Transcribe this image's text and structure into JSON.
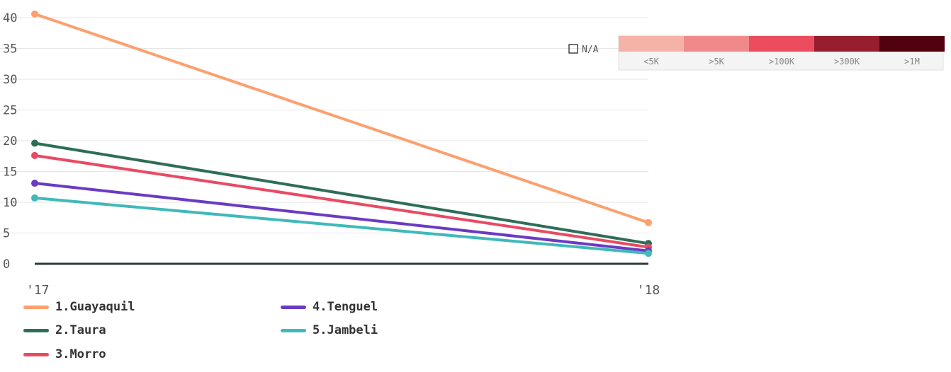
{
  "chart_data": {
    "type": "line",
    "x": [
      "'17",
      "'18"
    ],
    "yticks": [
      0,
      5,
      10,
      15,
      20,
      25,
      30,
      35,
      40
    ],
    "ylim": [
      0,
      41
    ],
    "grid": true,
    "series": [
      {
        "name": "1.Guayaquil",
        "color": "#FCA06E",
        "values": [
          40.6,
          6.7
        ]
      },
      {
        "name": "2.Taura",
        "color": "#2E6E58",
        "values": [
          19.6,
          3.3
        ]
      },
      {
        "name": "3.Morro",
        "color": "#E84A63",
        "values": [
          17.6,
          2.7
        ]
      },
      {
        "name": "4.Tenguel",
        "color": "#6A3BC4",
        "values": [
          13.1,
          2.1
        ]
      },
      {
        "name": "5.Jambeli",
        "color": "#3FB9B9",
        "values": [
          10.7,
          1.7
        ]
      }
    ],
    "color_scale": {
      "na_label": "N/A",
      "bins": [
        {
          "label": "<5K",
          "color": "#F5B3A8"
        },
        {
          "label": ">5K",
          "color": "#F08A8A"
        },
        {
          "label": ">100K",
          "color": "#EB4D5E"
        },
        {
          "label": ">300K",
          "color": "#961E2E"
        },
        {
          "label": ">1M",
          "color": "#52020E"
        }
      ]
    }
  }
}
